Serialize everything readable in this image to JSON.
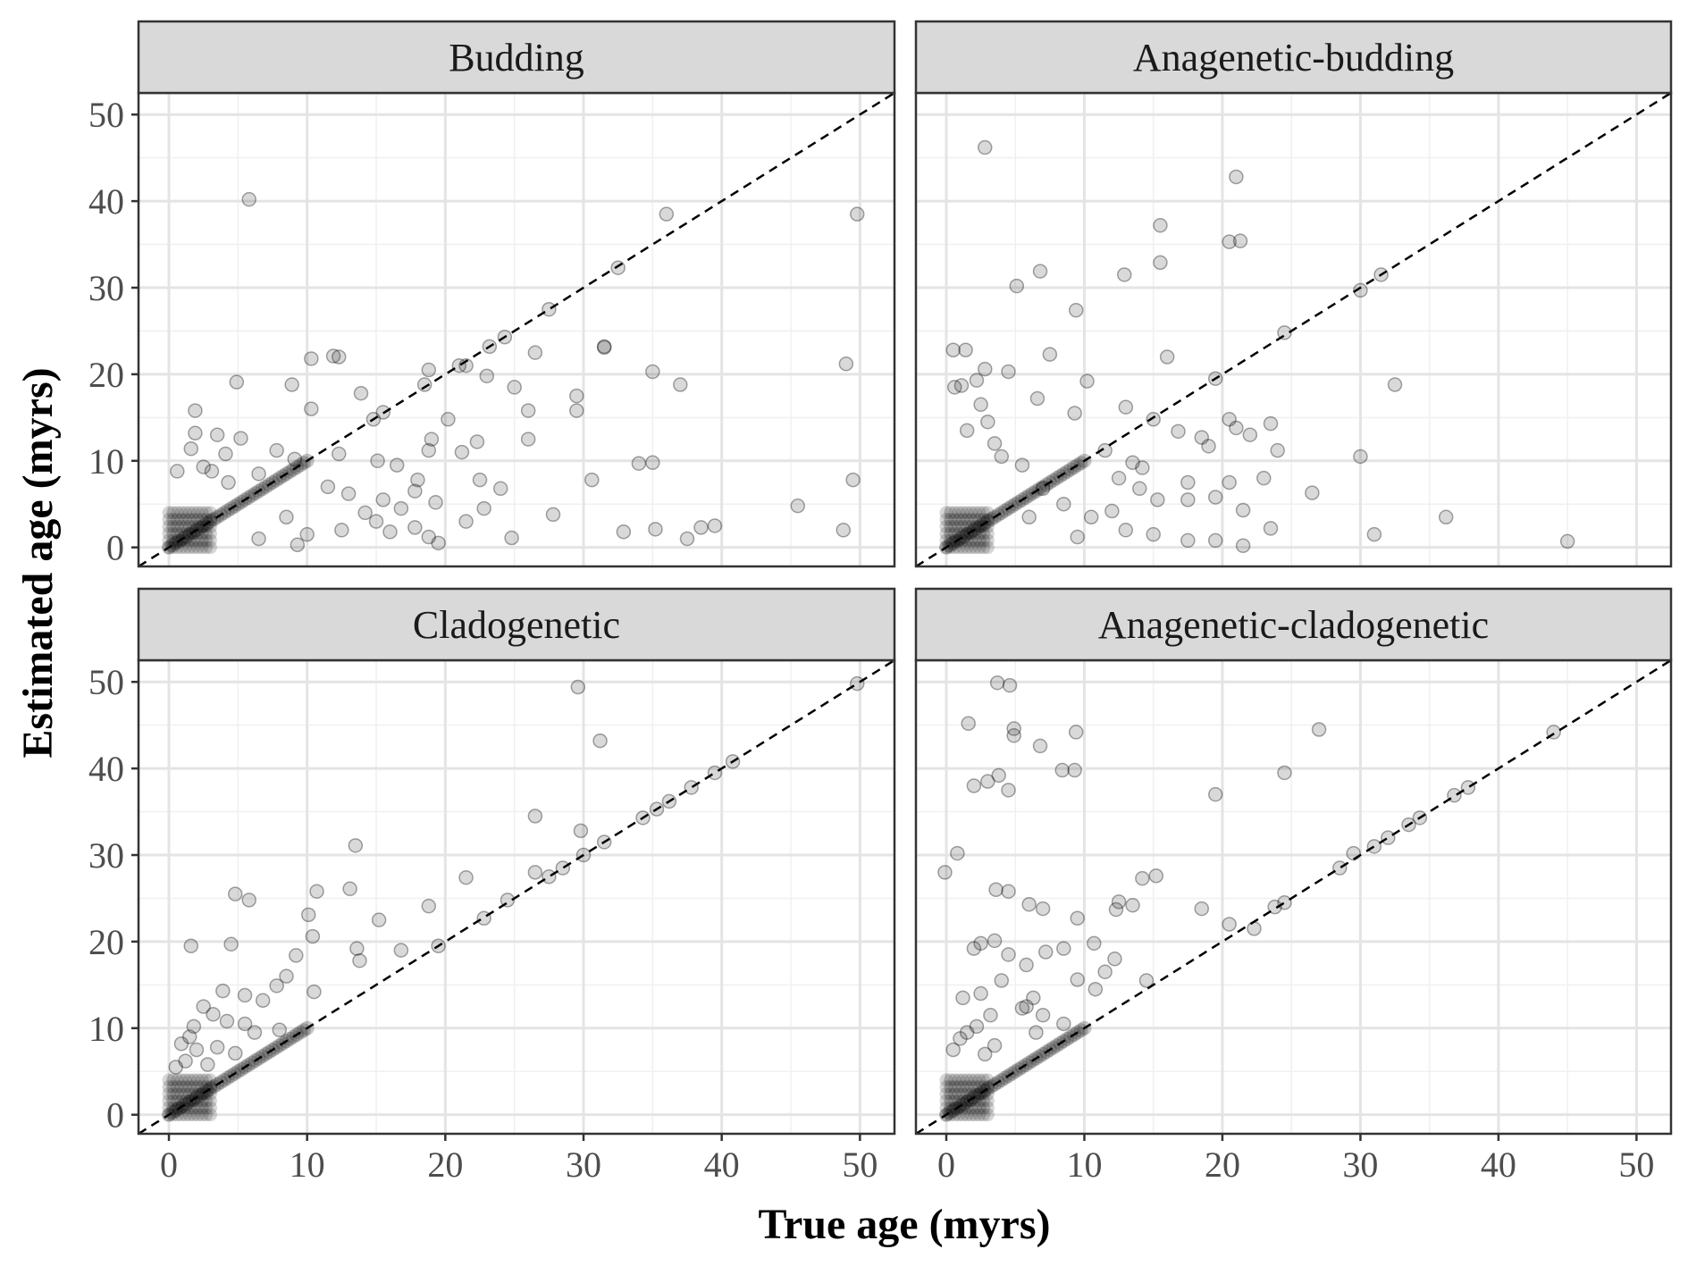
{
  "chart_data": {
    "type": "scatter",
    "layout": "facet-grid-2x2",
    "xlabel": "True age (myrs)",
    "ylabel": "Estimated age (myrs)",
    "xlim": [
      -2.2,
      52.5
    ],
    "ylim": [
      -2.2,
      52.5
    ],
    "x_ticks": [
      0,
      10,
      20,
      30,
      40,
      50
    ],
    "y_ticks": [
      0,
      10,
      20,
      30,
      40,
      50
    ],
    "grid": true,
    "reference_line": "y = x",
    "point_color": "#000000",
    "point_alpha": 0.15,
    "panels": [
      {
        "title": "Budding",
        "points": [
          [
            5.8,
            40.2
          ],
          [
            36,
            38.5
          ],
          [
            49.8,
            38.5
          ],
          [
            32.5,
            32.3
          ],
          [
            27.5,
            27.5
          ],
          [
            24.3,
            24.3
          ],
          [
            23.2,
            23.2
          ],
          [
            31.5,
            23.2
          ],
          [
            26.5,
            22.5
          ],
          [
            10.3,
            21.8
          ],
          [
            11.9,
            22.1
          ],
          [
            12.3,
            22
          ],
          [
            21,
            21
          ],
          [
            49,
            21.2
          ],
          [
            18.8,
            20.5
          ],
          [
            35,
            20.3
          ],
          [
            21.5,
            21
          ],
          [
            23,
            19.8
          ],
          [
            18.5,
            18.8
          ],
          [
            25,
            18.5
          ],
          [
            37,
            18.8
          ],
          [
            4.9,
            19.1
          ],
          [
            8.9,
            18.8
          ],
          [
            13.9,
            17.8
          ],
          [
            29.5,
            17.5
          ],
          [
            1.9,
            15.8
          ],
          [
            10.3,
            16
          ],
          [
            15.5,
            15.6
          ],
          [
            26,
            15.8
          ],
          [
            29.5,
            15.8
          ],
          [
            14.8,
            14.8
          ],
          [
            20.2,
            14.8
          ],
          [
            1.9,
            13.2
          ],
          [
            3.5,
            13
          ],
          [
            5.2,
            12.6
          ],
          [
            19,
            12.5
          ],
          [
            22.3,
            12.2
          ],
          [
            26,
            12.5
          ],
          [
            31.5,
            23.1
          ],
          [
            7.8,
            11.2
          ],
          [
            1.6,
            11.4
          ],
          [
            4.1,
            10.8
          ],
          [
            12.3,
            10.8
          ],
          [
            18.8,
            11.2
          ],
          [
            21.2,
            11
          ],
          [
            9.1,
            10.2
          ],
          [
            15.1,
            10
          ],
          [
            16.5,
            9.5
          ],
          [
            34,
            9.7
          ],
          [
            35,
            9.8
          ],
          [
            49.5,
            7.8
          ],
          [
            30.6,
            7.8
          ],
          [
            22.5,
            7.8
          ],
          [
            18,
            7.8
          ],
          [
            17.8,
            6.5
          ],
          [
            24,
            6.8
          ],
          [
            15.5,
            5.5
          ],
          [
            16.8,
            4.5
          ],
          [
            19.3,
            5.2
          ],
          [
            22.8,
            4.5
          ],
          [
            45.5,
            4.8
          ],
          [
            27.8,
            3.8
          ],
          [
            17.8,
            2.3
          ],
          [
            21.5,
            3
          ],
          [
            24.8,
            1.1
          ],
          [
            32.9,
            1.8
          ],
          [
            35.2,
            2.1
          ],
          [
            37.5,
            1
          ],
          [
            38.5,
            2.3
          ],
          [
            39.5,
            2.5
          ],
          [
            48.8,
            2
          ],
          [
            19.5,
            0.5
          ],
          [
            3.1,
            8.8
          ],
          [
            0.6,
            8.8
          ],
          [
            6.5,
            8.5
          ],
          [
            2.5,
            9.3
          ],
          [
            4.3,
            7.5
          ],
          [
            11.5,
            7
          ],
          [
            13,
            6.2
          ],
          [
            14.2,
            4
          ],
          [
            10,
            1.5
          ],
          [
            8.5,
            3.5
          ],
          [
            12.5,
            2
          ],
          [
            15,
            3
          ],
          [
            16,
            1.8
          ],
          [
            18.8,
            1.2
          ],
          [
            6.5,
            1
          ],
          [
            9.3,
            0.3
          ]
        ]
      },
      {
        "title": "Anagenetic-budding",
        "points": [
          [
            2.8,
            46.2
          ],
          [
            21,
            42.8
          ],
          [
            15.5,
            37.2
          ],
          [
            20.5,
            35.3
          ],
          [
            21.3,
            35.4
          ],
          [
            15.5,
            32.9
          ],
          [
            6.8,
            31.9
          ],
          [
            12.9,
            31.5
          ],
          [
            31.5,
            31.5
          ],
          [
            5.1,
            30.2
          ],
          [
            30,
            29.7
          ],
          [
            9.4,
            27.4
          ],
          [
            24.5,
            24.8
          ],
          [
            0.5,
            22.8
          ],
          [
            1.4,
            22.8
          ],
          [
            7.5,
            22.3
          ],
          [
            16,
            22
          ],
          [
            2.8,
            20.6
          ],
          [
            2.2,
            19.3
          ],
          [
            4.5,
            20.3
          ],
          [
            0.6,
            18.5
          ],
          [
            1.1,
            18.7
          ],
          [
            10.2,
            19.2
          ],
          [
            19.5,
            19.5
          ],
          [
            32.5,
            18.8
          ],
          [
            6.6,
            17.2
          ],
          [
            9.3,
            15.5
          ],
          [
            13,
            16.2
          ],
          [
            15,
            14.8
          ],
          [
            20.5,
            14.8
          ],
          [
            23.5,
            14.3
          ],
          [
            16.8,
            13.4
          ],
          [
            18.5,
            12.7
          ],
          [
            21,
            13.8
          ],
          [
            22,
            13
          ],
          [
            19,
            11.7
          ],
          [
            24,
            11.2
          ],
          [
            30,
            10.5
          ],
          [
            11.5,
            11.2
          ],
          [
            13.5,
            9.8
          ],
          [
            12.5,
            8
          ],
          [
            14.2,
            9.2
          ],
          [
            17.5,
            7.5
          ],
          [
            20.5,
            7.5
          ],
          [
            23,
            8
          ],
          [
            26.5,
            6.3
          ],
          [
            15.3,
            5.5
          ],
          [
            17.5,
            5.5
          ],
          [
            19.5,
            5.8
          ],
          [
            21.5,
            4.3
          ],
          [
            23.5,
            2.2
          ],
          [
            31,
            1.5
          ],
          [
            36.2,
            3.5
          ],
          [
            45,
            0.7
          ],
          [
            19.5,
            0.8
          ],
          [
            21.5,
            0.2
          ],
          [
            17.5,
            0.8
          ],
          [
            15,
            1.5
          ],
          [
            13,
            2
          ],
          [
            10.5,
            3.5
          ],
          [
            8.5,
            5
          ],
          [
            7,
            6.8
          ],
          [
            5.5,
            9.5
          ],
          [
            3.5,
            12
          ],
          [
            3,
            14.5
          ],
          [
            1.5,
            13.5
          ],
          [
            2.5,
            16.5
          ],
          [
            4,
            10.5
          ],
          [
            6,
            3.5
          ],
          [
            9.5,
            1.2
          ],
          [
            12,
            4.2
          ],
          [
            14,
            6.8
          ]
        ]
      },
      {
        "title": "Cladogenetic",
        "points": [
          [
            29.6,
            49.4
          ],
          [
            49.8,
            49.8
          ],
          [
            31.2,
            43.2
          ],
          [
            40.8,
            40.8
          ],
          [
            39.5,
            39.5
          ],
          [
            37.8,
            37.8
          ],
          [
            36.2,
            36.2
          ],
          [
            35.3,
            35.3
          ],
          [
            34.3,
            34.3
          ],
          [
            26.5,
            34.5
          ],
          [
            29.8,
            32.8
          ],
          [
            31.5,
            31.5
          ],
          [
            13.5,
            31.1
          ],
          [
            30,
            30
          ],
          [
            28.5,
            28.5
          ],
          [
            27.5,
            27.5
          ],
          [
            21.5,
            27.4
          ],
          [
            26.5,
            28
          ],
          [
            24.5,
            24.8
          ],
          [
            22.8,
            22.7
          ],
          [
            10.7,
            25.8
          ],
          [
            13.1,
            26.1
          ],
          [
            4.8,
            25.5
          ],
          [
            5.8,
            24.8
          ],
          [
            10.1,
            23.1
          ],
          [
            15.2,
            22.5
          ],
          [
            13.6,
            19.2
          ],
          [
            16.8,
            19
          ],
          [
            19.5,
            19.5
          ],
          [
            18.8,
            24.1
          ],
          [
            1.6,
            19.5
          ],
          [
            4.5,
            19.7
          ],
          [
            9.2,
            18.4
          ],
          [
            10.4,
            20.6
          ],
          [
            13.8,
            17.8
          ],
          [
            8.5,
            16
          ],
          [
            7.8,
            14.9
          ],
          [
            10.5,
            14.2
          ],
          [
            3.9,
            14.3
          ],
          [
            5.5,
            13.8
          ],
          [
            6.8,
            13.2
          ],
          [
            2.5,
            12.5
          ],
          [
            3.2,
            11.6
          ],
          [
            1.8,
            10.2
          ],
          [
            4.2,
            10.8
          ],
          [
            5.5,
            10.5
          ],
          [
            1.5,
            9
          ],
          [
            6.2,
            9.5
          ],
          [
            0.9,
            8.2
          ],
          [
            2,
            7.5
          ],
          [
            3.5,
            7.8
          ],
          [
            4.8,
            7.1
          ],
          [
            8,
            9.8
          ],
          [
            0.5,
            5.5
          ],
          [
            1.2,
            6.2
          ],
          [
            2.8,
            5.8
          ]
        ]
      },
      {
        "title": "Anagenetic-cladogenetic",
        "points": [
          [
            3.7,
            49.9
          ],
          [
            4.6,
            49.6
          ],
          [
            1.6,
            45.2
          ],
          [
            4.9,
            44.6
          ],
          [
            4.9,
            43.8
          ],
          [
            6.8,
            42.6
          ],
          [
            9.4,
            44.2
          ],
          [
            27,
            44.5
          ],
          [
            44,
            44.2
          ],
          [
            2,
            38
          ],
          [
            3,
            38.5
          ],
          [
            3.8,
            39.2
          ],
          [
            4.5,
            37.5
          ],
          [
            8.4,
            39.8
          ],
          [
            9.3,
            39.8
          ],
          [
            19.5,
            37
          ],
          [
            36.8,
            36.9
          ],
          [
            37.8,
            37.8
          ],
          [
            34.3,
            34.3
          ],
          [
            33.5,
            33.5
          ],
          [
            32,
            32
          ],
          [
            31,
            31
          ],
          [
            29.5,
            30.2
          ],
          [
            28.5,
            28.5
          ],
          [
            24.5,
            39.5
          ],
          [
            -0.1,
            28
          ],
          [
            0.8,
            30.2
          ],
          [
            3.6,
            26
          ],
          [
            4.5,
            25.8
          ],
          [
            6,
            24.3
          ],
          [
            7,
            23.8
          ],
          [
            9.5,
            22.7
          ],
          [
            12.5,
            24.6
          ],
          [
            12.3,
            23.7
          ],
          [
            13.5,
            24.2
          ],
          [
            14.2,
            27.3
          ],
          [
            15.2,
            27.6
          ],
          [
            18.5,
            23.8
          ],
          [
            20.5,
            22
          ],
          [
            22.3,
            21.5
          ],
          [
            23.8,
            24
          ],
          [
            24.5,
            24.5
          ],
          [
            2,
            19.2
          ],
          [
            2.5,
            19.8
          ],
          [
            3.5,
            20.1
          ],
          [
            4.5,
            18.5
          ],
          [
            5.8,
            17.3
          ],
          [
            7.2,
            18.8
          ],
          [
            10.7,
            19.8
          ],
          [
            9.5,
            15.6
          ],
          [
            10.8,
            14.5
          ],
          [
            11.5,
            16.5
          ],
          [
            8.5,
            19.2
          ],
          [
            12.2,
            18
          ],
          [
            14.5,
            15.5
          ],
          [
            1.2,
            13.5
          ],
          [
            2.5,
            14
          ],
          [
            4,
            15.5
          ],
          [
            5.8,
            12.5
          ],
          [
            6.3,
            13.5
          ],
          [
            3.2,
            11.5
          ],
          [
            5.5,
            12.3
          ],
          [
            7,
            11.5
          ],
          [
            8.5,
            10.5
          ],
          [
            1,
            8.8
          ],
          [
            2.2,
            10.2
          ],
          [
            1.5,
            9.5
          ],
          [
            6.5,
            9.5
          ],
          [
            0.5,
            7.5
          ],
          [
            3.5,
            8
          ],
          [
            2.8,
            7
          ]
        ]
      }
    ]
  }
}
